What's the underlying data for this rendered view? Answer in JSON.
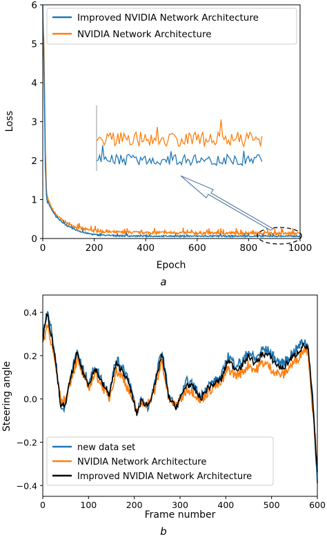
{
  "chart_data": [
    {
      "type": "line",
      "panel_label": "a",
      "xlabel": "Epoch",
      "ylabel": "Loss",
      "xlim": [
        0,
        1000
      ],
      "ylim": [
        0,
        6
      ],
      "x_ticks": [
        "0",
        "200",
        "400",
        "600",
        "800",
        "1000"
      ],
      "y_ticks": [
        "0",
        "1",
        "2",
        "3",
        "4",
        "5",
        "6"
      ],
      "grid": false,
      "legend_position": "top-right",
      "series": [
        {
          "name": "Improved NVIDIA Network Architecture",
          "color": "#1f77b4",
          "x": [
            0,
            5,
            10,
            15,
            20,
            30,
            40,
            50,
            60,
            80,
            100,
            130,
            160,
            200,
            250,
            300,
            400,
            500,
            600,
            700,
            800,
            900,
            1000
          ],
          "values": [
            6.0,
            4.3,
            1.8,
            1.05,
            0.95,
            0.8,
            0.68,
            0.58,
            0.5,
            0.4,
            0.3,
            0.22,
            0.15,
            0.1,
            0.08,
            0.07,
            0.06,
            0.06,
            0.06,
            0.06,
            0.06,
            0.06,
            0.06
          ]
        },
        {
          "name": "NVIDIA Network Architecture",
          "color": "#ff7f0e",
          "x": [
            0,
            5,
            10,
            15,
            20,
            30,
            40,
            50,
            60,
            80,
            100,
            130,
            160,
            200,
            250,
            300,
            400,
            500,
            600,
            700,
            800,
            900,
            1000
          ],
          "values": [
            5.7,
            4.9,
            2.2,
            1.1,
            1.0,
            0.85,
            0.72,
            0.62,
            0.55,
            0.45,
            0.36,
            0.29,
            0.24,
            0.2,
            0.17,
            0.16,
            0.15,
            0.15,
            0.14,
            0.14,
            0.14,
            0.13,
            0.13
          ]
        }
      ],
      "annotation": "inset magnifies epochs ~850-1000 (dashed ellipse, arrow)"
    },
    {
      "type": "line",
      "panel_label": "b",
      "xlabel": "Frame number",
      "ylabel": "Steering angle",
      "xlim": [
        0,
        600
      ],
      "ylim": [
        -0.45,
        0.48
      ],
      "x_ticks": [
        "0",
        "100",
        "200",
        "300",
        "400",
        "500",
        "600"
      ],
      "y_ticks": [
        "0.4",
        "0.2",
        "0.0",
        "−0.2",
        "−0.4"
      ],
      "y_tick_values": [
        0.4,
        0.2,
        0.0,
        -0.2,
        -0.4
      ],
      "grid": false,
      "legend_position": "bottom-left",
      "x": [
        0,
        10,
        20,
        30,
        40,
        50,
        60,
        75,
        90,
        100,
        115,
        130,
        145,
        160,
        175,
        190,
        205,
        215,
        230,
        245,
        260,
        275,
        290,
        300,
        315,
        330,
        345,
        360,
        375,
        390,
        405,
        420,
        435,
        450,
        465,
        480,
        495,
        510,
        525,
        540,
        555,
        570,
        580,
        590,
        600
      ],
      "series": [
        {
          "name": "new data set",
          "color": "#1f77b4",
          "values": [
            0.3,
            0.42,
            0.3,
            0.15,
            -0.05,
            -0.03,
            0.1,
            0.22,
            0.12,
            0.08,
            0.15,
            0.08,
            0.03,
            0.18,
            0.15,
            0.08,
            -0.07,
            0.0,
            -0.04,
            0.07,
            0.23,
            0.02,
            -0.04,
            0.0,
            0.08,
            0.06,
            0.01,
            0.06,
            0.08,
            0.1,
            0.2,
            0.16,
            0.17,
            0.22,
            0.18,
            0.23,
            0.22,
            0.18,
            0.16,
            0.2,
            0.23,
            0.27,
            0.24,
            0.0,
            -0.38
          ]
        },
        {
          "name": "NVIDIA Network Architecture",
          "color": "#ff7f0e",
          "values": [
            0.25,
            0.35,
            0.25,
            0.12,
            -0.02,
            0.0,
            0.08,
            0.18,
            0.1,
            0.05,
            0.12,
            0.06,
            0.0,
            0.13,
            0.1,
            0.03,
            -0.06,
            -0.02,
            -0.02,
            0.04,
            0.18,
            0.0,
            -0.03,
            -0.01,
            0.05,
            0.03,
            -0.01,
            0.03,
            0.06,
            0.07,
            0.14,
            0.11,
            0.12,
            0.16,
            0.13,
            0.17,
            0.15,
            0.12,
            0.11,
            0.15,
            0.18,
            0.23,
            0.22,
            -0.05,
            -0.3
          ]
        },
        {
          "name": "Improved NVIDIA Network Architecture",
          "color": "#000000",
          "values": [
            0.28,
            0.39,
            0.28,
            0.13,
            -0.04,
            -0.02,
            0.09,
            0.21,
            0.11,
            0.07,
            0.14,
            0.07,
            0.02,
            0.16,
            0.13,
            0.06,
            -0.07,
            -0.01,
            -0.03,
            0.06,
            0.21,
            0.01,
            -0.04,
            0.0,
            0.07,
            0.05,
            0.0,
            0.05,
            0.07,
            0.09,
            0.18,
            0.14,
            0.15,
            0.2,
            0.16,
            0.21,
            0.2,
            0.16,
            0.14,
            0.18,
            0.21,
            0.25,
            0.23,
            -0.02,
            -0.35
          ]
        }
      ]
    }
  ]
}
